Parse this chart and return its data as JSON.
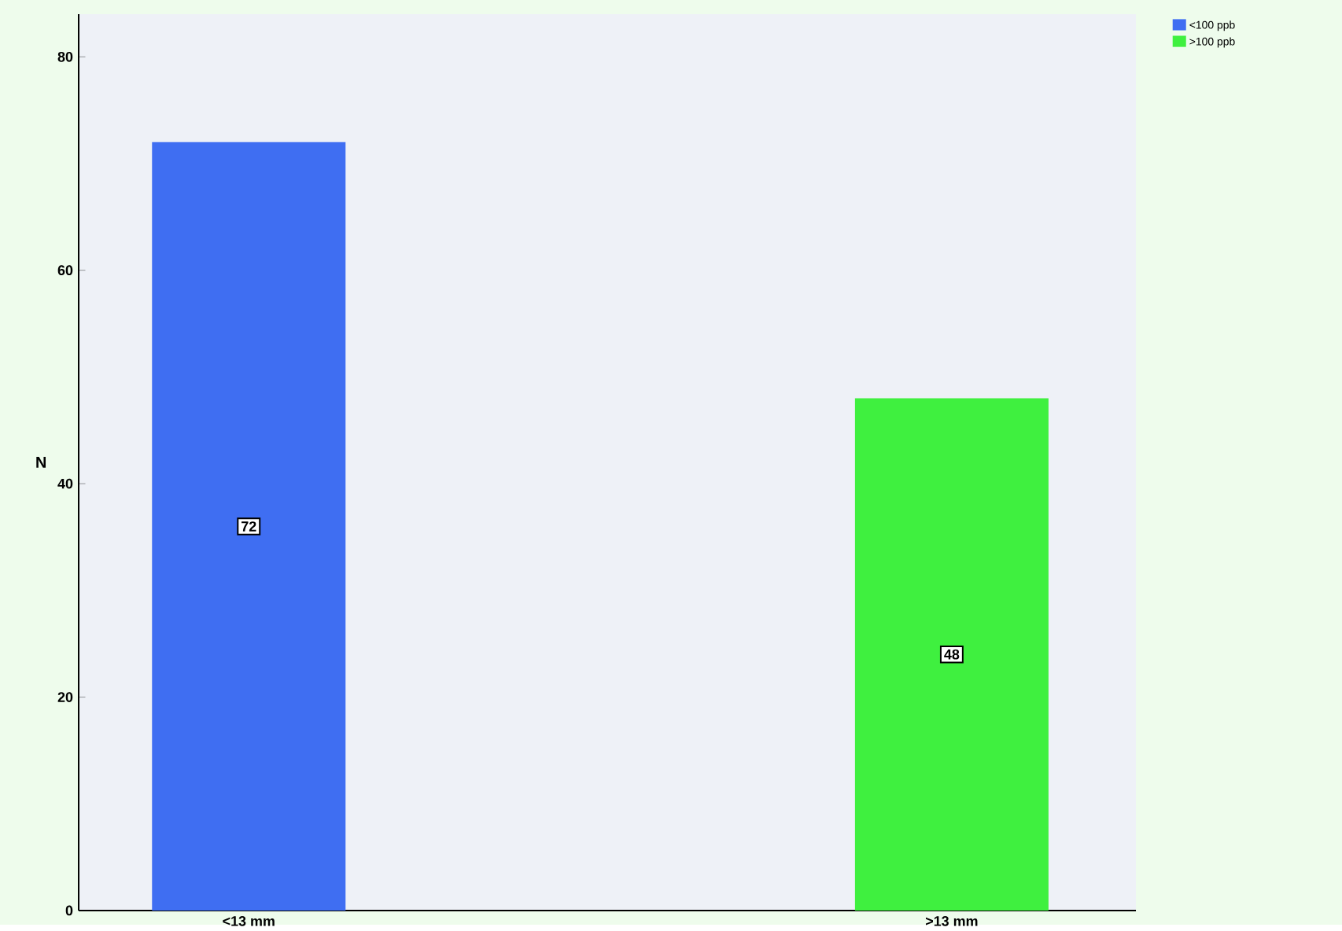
{
  "chart_data": {
    "type": "bar",
    "ylabel": "N",
    "categories": [
      "<13 mm",
      ">13 mm"
    ],
    "series": [
      {
        "name": "<100 ppb",
        "color": "#3f6ef2",
        "values": [
          72,
          null
        ]
      },
      {
        "name": ">100 ppb",
        "color": "#3ff03f",
        "values": [
          null,
          48
        ]
      }
    ],
    "ylim": [
      0,
      84
    ],
    "yticks": [
      0,
      20,
      40,
      60,
      80
    ],
    "data_labels": true,
    "legend": "top right"
  }
}
